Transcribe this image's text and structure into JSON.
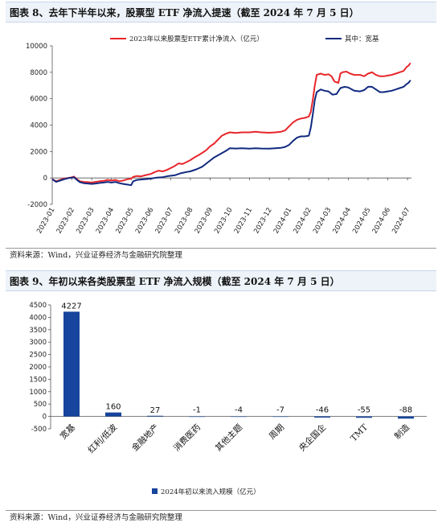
{
  "panel1": {
    "title": "图表 8、去年下半年以来，股票型 ETF 净流入提速（截至 2024 年 7 月 5 日）",
    "source": "资料来源：Wind，兴业证券经济与金融研究院整理"
  },
  "panel2": {
    "title": "图表 9、年初以来各类股票型 ETF 净流入规模（截至 2024 年 7 月 5 日）",
    "source": "资料来源：Wind，兴业证券经济与金融研究院整理"
  },
  "chart_data": [
    {
      "type": "line",
      "title": "",
      "xlabel": "",
      "ylabel": "",
      "ylim": [
        -2000,
        10000
      ],
      "yticks": [
        -2000,
        0,
        2000,
        4000,
        6000,
        8000,
        10000
      ],
      "ytick_labels": [
        "-2000",
        "0",
        "2000",
        "4000",
        "6000",
        "8000",
        "10000"
      ],
      "x_tick_labels": [
        "2023-01",
        "2023-02",
        "2023-03",
        "2023-04",
        "2023-05",
        "2023-06",
        "2023-07",
        "2023-08",
        "2023-09",
        "2023-10",
        "2023-11",
        "2023-12",
        "2024-01",
        "2024-02",
        "2024-03",
        "2024-04",
        "2024-05",
        "2024-06",
        "2024-07"
      ],
      "x_range": [
        0,
        18.2
      ],
      "grid": false,
      "legend_position": "top",
      "series": [
        {
          "name": "2023年以来股票型ETF累计净流入（亿元）",
          "color": "#e8262a",
          "points": [
            [
              0,
              -100
            ],
            [
              0.2,
              -250
            ],
            [
              0.4,
              -150
            ],
            [
              0.6,
              -50
            ],
            [
              0.8,
              0
            ],
            [
              1.0,
              50
            ],
            [
              1.1,
              100
            ],
            [
              1.25,
              -100
            ],
            [
              1.4,
              -250
            ],
            [
              1.6,
              -300
            ],
            [
              1.8,
              -320
            ],
            [
              2.0,
              -350
            ],
            [
              2.2,
              -300
            ],
            [
              2.4,
              -250
            ],
            [
              2.6,
              -220
            ],
            [
              2.8,
              -150
            ],
            [
              3.0,
              -200
            ],
            [
              3.2,
              -150
            ],
            [
              3.4,
              -250
            ],
            [
              3.6,
              -200
            ],
            [
              3.8,
              -100
            ],
            [
              4.0,
              -50
            ],
            [
              4.1,
              80
            ],
            [
              4.3,
              150
            ],
            [
              4.5,
              120
            ],
            [
              4.7,
              200
            ],
            [
              5.0,
              300
            ],
            [
              5.2,
              450
            ],
            [
              5.4,
              550
            ],
            [
              5.6,
              500
            ],
            [
              5.8,
              600
            ],
            [
              6.0,
              750
            ],
            [
              6.2,
              900
            ],
            [
              6.4,
              1100
            ],
            [
              6.6,
              1050
            ],
            [
              6.8,
              1200
            ],
            [
              7.0,
              1350
            ],
            [
              7.2,
              1550
            ],
            [
              7.5,
              1800
            ],
            [
              7.8,
              2100
            ],
            [
              8.0,
              2400
            ],
            [
              8.2,
              2600
            ],
            [
              8.4,
              2900
            ],
            [
              8.6,
              3200
            ],
            [
              8.8,
              3350
            ],
            [
              9.0,
              3450
            ],
            [
              9.3,
              3400
            ],
            [
              9.6,
              3450
            ],
            [
              10.0,
              3450
            ],
            [
              10.3,
              3500
            ],
            [
              10.6,
              3450
            ],
            [
              11.0,
              3420
            ],
            [
              11.3,
              3450
            ],
            [
              11.6,
              3500
            ],
            [
              11.8,
              3600
            ],
            [
              12.0,
              3900
            ],
            [
              12.2,
              4200
            ],
            [
              12.4,
              4400
            ],
            [
              12.6,
              4500
            ],
            [
              12.8,
              4550
            ],
            [
              13.0,
              4650
            ],
            [
              13.1,
              5000
            ],
            [
              13.2,
              5900
            ],
            [
              13.3,
              7000
            ],
            [
              13.4,
              7800
            ],
            [
              13.6,
              7900
            ],
            [
              13.8,
              7800
            ],
            [
              14.0,
              7850
            ],
            [
              14.15,
              7700
            ],
            [
              14.3,
              7300
            ],
            [
              14.5,
              7200
            ],
            [
              14.6,
              7900
            ],
            [
              14.7,
              8000
            ],
            [
              14.9,
              8050
            ],
            [
              15.1,
              7900
            ],
            [
              15.3,
              7800
            ],
            [
              15.6,
              7800
            ],
            [
              15.8,
              7700
            ],
            [
              16.0,
              7900
            ],
            [
              16.2,
              8000
            ],
            [
              16.4,
              7800
            ],
            [
              16.6,
              7700
            ],
            [
              16.8,
              7700
            ],
            [
              17.0,
              7750
            ],
            [
              17.2,
              7800
            ],
            [
              17.4,
              7900
            ],
            [
              17.6,
              8000
            ],
            [
              17.8,
              8100
            ],
            [
              17.95,
              8400
            ],
            [
              18.05,
              8500
            ],
            [
              18.15,
              8700
            ]
          ]
        },
        {
          "name": "其中：宽基",
          "color": "#112a80",
          "points": [
            [
              0,
              -100
            ],
            [
              0.2,
              -300
            ],
            [
              0.4,
              -200
            ],
            [
              0.6,
              -100
            ],
            [
              0.8,
              -20
            ],
            [
              1.0,
              20
            ],
            [
              1.1,
              50
            ],
            [
              1.25,
              -150
            ],
            [
              1.4,
              -320
            ],
            [
              1.6,
              -400
            ],
            [
              1.8,
              -420
            ],
            [
              2.0,
              -450
            ],
            [
              2.2,
              -420
            ],
            [
              2.4,
              -380
            ],
            [
              2.6,
              -350
            ],
            [
              2.8,
              -300
            ],
            [
              3.0,
              -350
            ],
            [
              3.2,
              -300
            ],
            [
              3.4,
              -400
            ],
            [
              3.6,
              -450
            ],
            [
              3.8,
              -500
            ],
            [
              4.0,
              -550
            ],
            [
              4.1,
              -250
            ],
            [
              4.3,
              -150
            ],
            [
              4.5,
              -120
            ],
            [
              4.8,
              -80
            ],
            [
              5.0,
              -50
            ],
            [
              5.3,
              30
            ],
            [
              5.6,
              60
            ],
            [
              5.9,
              150
            ],
            [
              6.2,
              200
            ],
            [
              6.5,
              350
            ],
            [
              6.8,
              450
            ],
            [
              7.0,
              500
            ],
            [
              7.3,
              650
            ],
            [
              7.6,
              850
            ],
            [
              7.9,
              1200
            ],
            [
              8.2,
              1550
            ],
            [
              8.5,
              1800
            ],
            [
              8.8,
              2050
            ],
            [
              9.0,
              2250
            ],
            [
              9.3,
              2230
            ],
            [
              9.6,
              2250
            ],
            [
              10.0,
              2220
            ],
            [
              10.3,
              2250
            ],
            [
              10.6,
              2230
            ],
            [
              11.0,
              2220
            ],
            [
              11.3,
              2250
            ],
            [
              11.6,
              2280
            ],
            [
              11.8,
              2350
            ],
            [
              12.0,
              2500
            ],
            [
              12.2,
              2800
            ],
            [
              12.4,
              3050
            ],
            [
              12.6,
              3150
            ],
            [
              12.8,
              3150
            ],
            [
              13.0,
              3200
            ],
            [
              13.1,
              3800
            ],
            [
              13.2,
              4800
            ],
            [
              13.3,
              5900
            ],
            [
              13.4,
              6500
            ],
            [
              13.6,
              6700
            ],
            [
              13.8,
              6600
            ],
            [
              14.0,
              6550
            ],
            [
              14.2,
              6300
            ],
            [
              14.4,
              6350
            ],
            [
              14.6,
              6800
            ],
            [
              14.8,
              6900
            ],
            [
              15.0,
              6850
            ],
            [
              15.3,
              6600
            ],
            [
              15.6,
              6550
            ],
            [
              15.8,
              6650
            ],
            [
              16.0,
              6900
            ],
            [
              16.2,
              6900
            ],
            [
              16.4,
              6700
            ],
            [
              16.6,
              6500
            ],
            [
              16.8,
              6500
            ],
            [
              17.0,
              6550
            ],
            [
              17.2,
              6600
            ],
            [
              17.4,
              6700
            ],
            [
              17.6,
              6800
            ],
            [
              17.8,
              6900
            ],
            [
              17.95,
              7100
            ],
            [
              18.05,
              7200
            ],
            [
              18.15,
              7400
            ]
          ]
        }
      ]
    },
    {
      "type": "bar",
      "title": "",
      "xlabel": "",
      "ylabel": "",
      "ylim": [
        -500,
        4500
      ],
      "yticks": [
        -500,
        0,
        500,
        1000,
        1500,
        2000,
        2500,
        3000,
        3500,
        4000,
        4500
      ],
      "ytick_labels": [
        "-500",
        "0",
        "500",
        "1000",
        "1500",
        "2000",
        "2500",
        "3000",
        "3500",
        "4000",
        "4500"
      ],
      "categories": [
        "宽基",
        "红利/低波",
        "金融地产",
        "消费医药",
        "其他主题",
        "周期",
        "央企国企",
        "TMT",
        "制造"
      ],
      "values": [
        4227,
        160,
        27,
        -1,
        -4,
        -7,
        -46,
        -55,
        -88
      ],
      "value_labels": [
        "4227",
        "160",
        "27",
        "-1",
        "-4",
        "-7",
        "-46",
        "-55",
        "-88"
      ],
      "grid": false,
      "legend_position": "bottom",
      "series": [
        {
          "name": "2024年初以来流入规模（亿元）",
          "color": "#17449c",
          "values": [
            4227,
            160,
            27,
            -1,
            -4,
            -7,
            -46,
            -55,
            -88
          ]
        }
      ]
    }
  ]
}
